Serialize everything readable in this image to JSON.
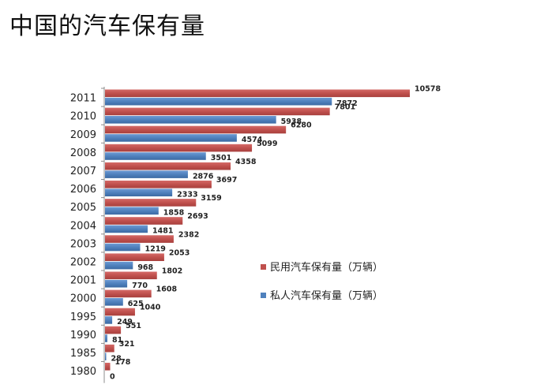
{
  "title": "中国的汽车保有量",
  "chart_data": {
    "type": "bar",
    "orientation": "horizontal",
    "categories": [
      "2011",
      "2010",
      "2009",
      "2008",
      "2007",
      "2006",
      "2005",
      "2004",
      "2003",
      "2002",
      "2001",
      "2000",
      "1995",
      "1990",
      "1985",
      "1980"
    ],
    "series": [
      {
        "name": "民用汽车保有量（万辆）",
        "color": "#c0504d",
        "values": [
          10578,
          7801,
          6280,
          5099,
          4358,
          3697,
          3159,
          2693,
          2382,
          2053,
          1802,
          1608,
          1040,
          551,
          321,
          178
        ]
      },
      {
        "name": "私人汽车保有量（万辆）",
        "color": "#4f81bd",
        "values": [
          7872,
          5938,
          4574,
          3501,
          2876,
          2333,
          1858,
          1481,
          1219,
          968,
          770,
          625,
          249,
          81,
          28,
          0
        ]
      }
    ],
    "xlim": [
      0,
      11500
    ],
    "grid": false,
    "legend_position": "right"
  }
}
